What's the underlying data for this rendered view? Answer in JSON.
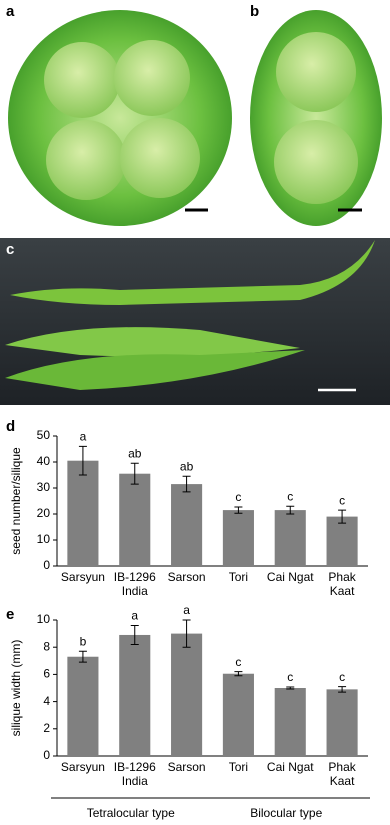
{
  "photo_panels": {
    "labels": [
      "a",
      "b",
      "c"
    ]
  },
  "chart_data": [
    {
      "type": "bar",
      "panel_label": "d",
      "ylabel": "seed number/silique",
      "categories": [
        "Sarsyun",
        "IB-1296\nIndia",
        "Sarson",
        "Tori",
        "Cai Ngat",
        "Phak\nKaat"
      ],
      "values": [
        40.5,
        35.5,
        31.5,
        21.5,
        21.5,
        19
      ],
      "errors": [
        5.5,
        4,
        3,
        1.2,
        1.5,
        2.5
      ],
      "significance": [
        "a",
        "ab",
        "ab",
        "c",
        "c",
        "c"
      ],
      "color": "#808080",
      "ylim": [
        0,
        50
      ],
      "yticks": [
        0,
        10,
        20,
        30,
        40,
        50
      ]
    },
    {
      "type": "bar",
      "panel_label": "e",
      "ylabel": "silique width (mm)",
      "categories": [
        "Sarsyun",
        "IB-1296\nIndia",
        "Sarson",
        "Tori",
        "Cai Ngat",
        "Phak\nKaat"
      ],
      "values": [
        7.3,
        8.9,
        9.0,
        6.05,
        5.0,
        4.9
      ],
      "errors": [
        0.4,
        0.7,
        1.0,
        0.15,
        0.07,
        0.2
      ],
      "significance": [
        "b",
        "a",
        "a",
        "c",
        "c",
        "c"
      ],
      "color": "#808080",
      "ylim": [
        0,
        10
      ],
      "yticks": [
        0,
        2,
        4,
        6,
        8,
        10
      ],
      "group_labels": [
        "Tetralocular type",
        "Bilocular type"
      ]
    }
  ]
}
